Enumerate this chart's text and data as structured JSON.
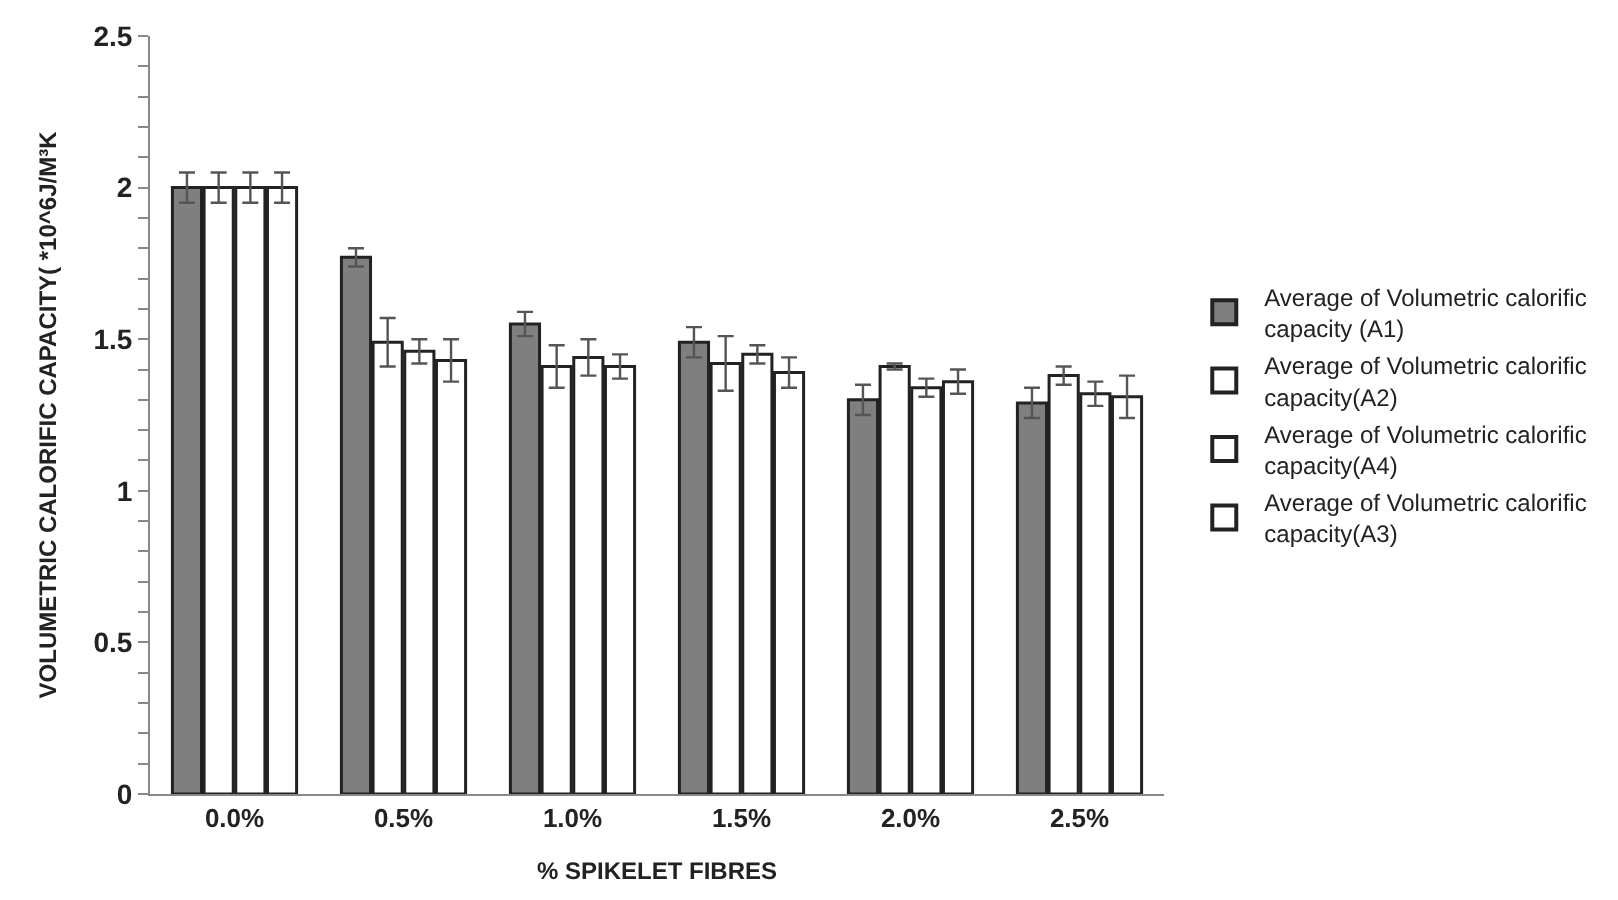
{
  "chart_data": {
    "type": "bar",
    "xlabel": "% SPIKELET FIBRES",
    "ylabel": "VOLUMETRIC CALORIFIC CAPACITY( *10^6J/M³K",
    "categories": [
      "0.0%",
      "0.5%",
      "1.0%",
      "1.5%",
      "2.0%",
      "2.5%"
    ],
    "series": [
      {
        "name": "Average of Volumetric calorific capacity (A1)",
        "color": "#7f7f7f",
        "values": [
          2.0,
          1.77,
          1.55,
          1.49,
          1.3,
          1.29
        ],
        "errors": [
          0.05,
          0.03,
          0.04,
          0.05,
          0.05,
          0.05
        ]
      },
      {
        "name": "Average of Volumetric calorific capacity(A2)",
        "color": "#ffffff",
        "values": [
          2.0,
          1.49,
          1.41,
          1.42,
          1.41,
          1.38
        ],
        "errors": [
          0.05,
          0.08,
          0.07,
          0.09,
          0.01,
          0.03
        ]
      },
      {
        "name": "Average of Volumetric calorific capacity(A4)",
        "color": "#ffffff",
        "values": [
          2.0,
          1.46,
          1.44,
          1.45,
          1.34,
          1.32
        ],
        "errors": [
          0.05,
          0.04,
          0.06,
          0.03,
          0.03,
          0.04
        ]
      },
      {
        "name": "Average of Volumetric calorific capacity(A3)",
        "color": "#ffffff",
        "values": [
          2.0,
          1.43,
          1.41,
          1.39,
          1.36,
          1.31
        ],
        "errors": [
          0.05,
          0.07,
          0.04,
          0.05,
          0.04,
          0.07
        ]
      }
    ],
    "ylim": [
      0,
      2.5
    ],
    "yticks": [
      0,
      {
        "value": 0.1,
        "label": null
      },
      {
        "value": 0.2,
        "label": null
      },
      {
        "value": 0.3,
        "label": null
      },
      {
        "value": 0.4,
        "label": null
      },
      0.5,
      {
        "value": 0.6,
        "label": null
      },
      {
        "value": 0.7,
        "label": null
      },
      {
        "value": 0.8,
        "label": null
      },
      {
        "value": 0.9,
        "label": null
      },
      1,
      {
        "value": 1.1,
        "label": null
      },
      {
        "value": 1.2,
        "label": null
      },
      {
        "value": 1.3,
        "label": null
      },
      {
        "value": 1.4,
        "label": null
      },
      1.5,
      {
        "value": 1.6,
        "label": null
      },
      {
        "value": 1.7,
        "label": null
      },
      {
        "value": 1.8,
        "label": null
      },
      {
        "value": 1.9,
        "label": null
      },
      2,
      {
        "value": 2.1,
        "label": null
      },
      {
        "value": 2.2,
        "label": null
      },
      {
        "value": 2.3,
        "label": null
      },
      {
        "value": 2.4,
        "label": null
      },
      2.5
    ],
    "legend": "right"
  }
}
